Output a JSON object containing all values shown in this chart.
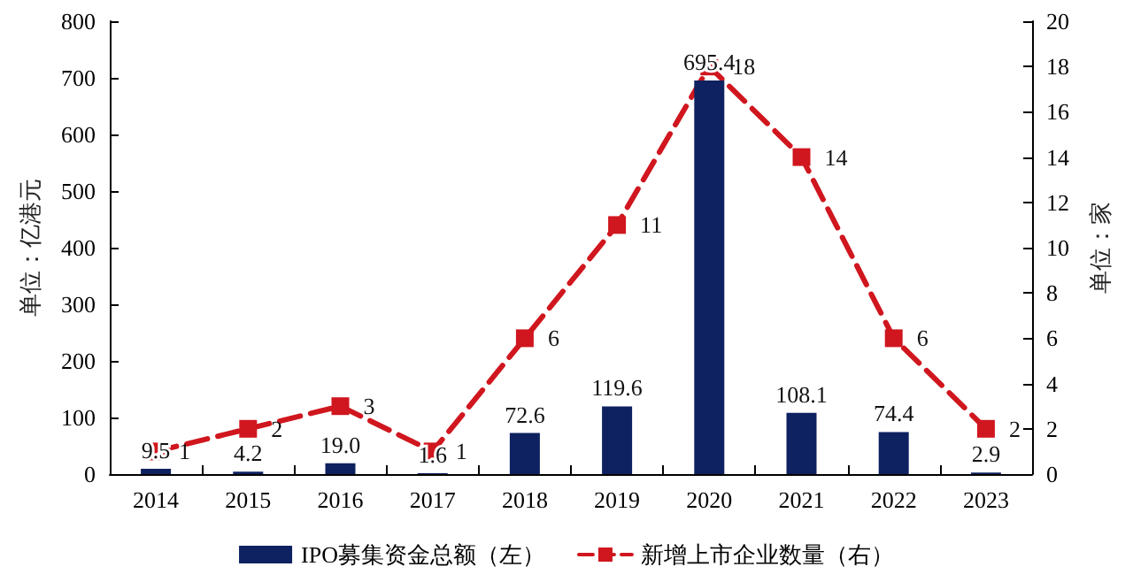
{
  "chart_data": {
    "type": "bar",
    "categories": [
      "2014",
      "2015",
      "2016",
      "2017",
      "2018",
      "2019",
      "2020",
      "2021",
      "2022",
      "2023"
    ],
    "series": [
      {
        "name": "IPO募集资金总额（左）",
        "color": "#0e2160",
        "values": [
          9.5,
          4.2,
          19.0,
          1.6,
          72.6,
          119.6,
          695.4,
          108.1,
          74.4,
          2.9
        ],
        "value_labels": [
          "9.5",
          "4.2",
          "19.0",
          "1.6",
          "72.6",
          "119.6",
          "695.4",
          "108.1",
          "74.4",
          "2.9"
        ]
      },
      {
        "name": "新增上市企业数量（右）",
        "type": "line",
        "axis": "y2",
        "color": "#d0161e",
        "marker": "square",
        "line_style": "dashed",
        "values": [
          1,
          2,
          3,
          1,
          6,
          11,
          18,
          14,
          6,
          2
        ]
      }
    ],
    "ylabel": "单位：亿港元",
    "y2label": "单位：家",
    "ylim": [
      0,
      800
    ],
    "yticks": [
      0,
      100,
      200,
      300,
      400,
      500,
      600,
      700,
      800
    ],
    "y2lim": [
      0,
      20
    ],
    "y2ticks": [
      0,
      2,
      4,
      6,
      8,
      10,
      12,
      14,
      16,
      18,
      20
    ],
    "data_labels": true,
    "grid": false,
    "legend": "bottom"
  }
}
